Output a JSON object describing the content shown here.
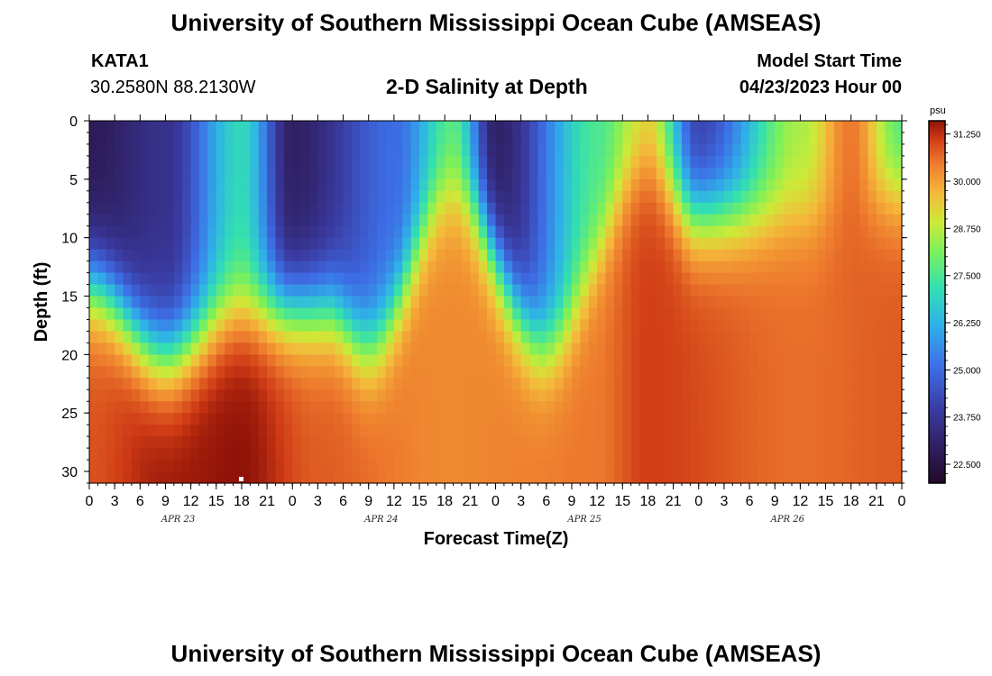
{
  "header": {
    "title": "University of Southern Mississippi Ocean Cube (AMSEAS)",
    "station": "KATA1",
    "coords": "30.2580N  88.2130W",
    "plot_title": "2-D Salinity at Depth",
    "model_start_label": "Model Start Time",
    "model_start_value": "04/23/2023 Hour 00"
  },
  "footer": {
    "title": "University of Southern Mississippi Ocean Cube (AMSEAS)"
  },
  "chart_data": {
    "type": "heatmap",
    "title": "2-D Salinity at Depth",
    "xlabel": "Forecast Time(Z)",
    "ylabel": "Depth (ft)",
    "x_hours_range": [
      0,
      96
    ],
    "y_range_ft": [
      0,
      31
    ],
    "y_ticks": [
      "0",
      "5",
      "10",
      "15",
      "20",
      "25",
      "30"
    ],
    "y_tick_values": [
      0,
      5,
      10,
      15,
      20,
      25,
      30
    ],
    "x_tick_labels": [
      "0",
      "3",
      "6",
      "9",
      "12",
      "15",
      "18",
      "21",
      "0",
      "3",
      "6",
      "9",
      "12",
      "15",
      "18",
      "21",
      "0",
      "3",
      "6",
      "9",
      "12",
      "15",
      "18",
      "21",
      "0",
      "3",
      "6",
      "9",
      "12",
      "15",
      "18",
      "21",
      "0"
    ],
    "day_labels": [
      "APR 23",
      "APR 24",
      "APR 25",
      "APR 26"
    ],
    "colorbar": {
      "unit": "psu",
      "min": 22.0,
      "max": 31.6,
      "tick_labels": [
        "31.250",
        "30.000",
        "28.750",
        "27.500",
        "26.250",
        "25.000",
        "23.750",
        "22.500"
      ],
      "tick_values": [
        31.25,
        30.0,
        28.75,
        27.5,
        26.25,
        25.0,
        23.75,
        22.5
      ]
    },
    "surface_salinity_psu": [
      {
        "hour": 0,
        "value": 22.8
      },
      {
        "hour": 9,
        "value": 23.6
      },
      {
        "hour": 18,
        "value": 27.0
      },
      {
        "hour": 24,
        "value": 23.0
      },
      {
        "hour": 36,
        "value": 25.0
      },
      {
        "hour": 43,
        "value": 27.5
      },
      {
        "hour": 48,
        "value": 23.0
      },
      {
        "hour": 60,
        "value": 27.5
      },
      {
        "hour": 66,
        "value": 29.0
      },
      {
        "hour": 72,
        "value": 24.0
      },
      {
        "hour": 84,
        "value": 28.5
      },
      {
        "hour": 90,
        "value": 30.5
      },
      {
        "hour": 96,
        "value": 27.5
      }
    ],
    "halocline_depth_ft": [
      {
        "hour": 0,
        "value": 14
      },
      {
        "hour": 9,
        "value": 20
      },
      {
        "hour": 18,
        "value": 16
      },
      {
        "hour": 28,
        "value": 16
      },
      {
        "hour": 33,
        "value": 19
      },
      {
        "hour": 43,
        "value": 6
      },
      {
        "hour": 54,
        "value": 19
      },
      {
        "hour": 66,
        "value": 4
      },
      {
        "hour": 72,
        "value": 8
      },
      {
        "hour": 84,
        "value": 8
      },
      {
        "hour": 96,
        "value": 6
      }
    ],
    "bottom_salinity_psu": [
      {
        "hour": 0,
        "value": 30.9
      },
      {
        "hour": 9,
        "value": 31.5
      },
      {
        "hour": 18,
        "value": 31.6
      },
      {
        "hour": 27,
        "value": 30.8
      },
      {
        "hour": 42,
        "value": 30.3
      },
      {
        "hour": 60,
        "value": 30.5
      },
      {
        "hour": 66,
        "value": 31.1
      },
      {
        "hour": 84,
        "value": 30.6
      },
      {
        "hour": 96,
        "value": 30.8
      }
    ]
  }
}
